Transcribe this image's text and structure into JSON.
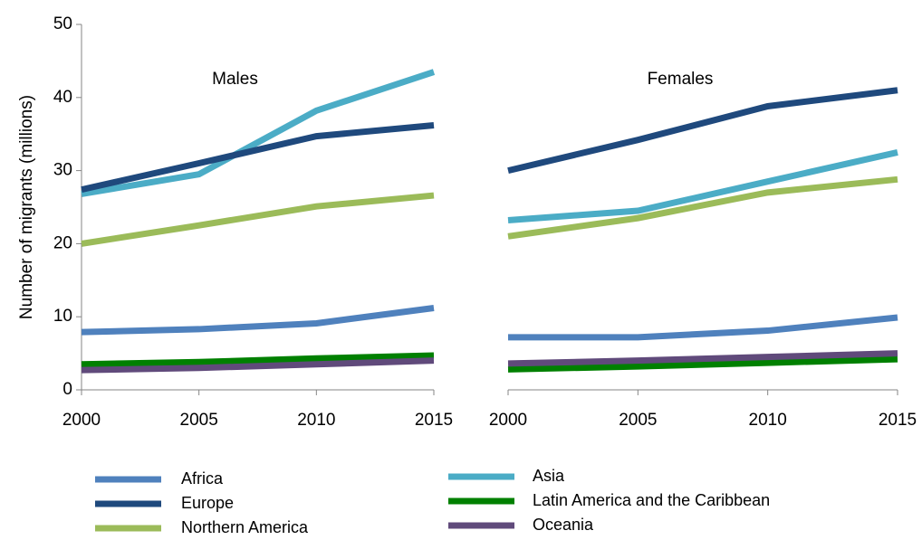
{
  "chart_data": [
    {
      "type": "line",
      "title": "Males",
      "ylabel": "Number of migrants (millions)",
      "x": [
        2000,
        2005,
        2010,
        2015
      ],
      "xlim": [
        2000,
        2015
      ],
      "xticks": [
        2000,
        2005,
        2010,
        2015
      ],
      "ylim": [
        0,
        50
      ],
      "yticks": [
        0,
        10,
        20,
        30,
        40,
        50
      ],
      "series": [
        {
          "name": "Africa",
          "color": "#4f81bd",
          "values": [
            7.9,
            8.3,
            9.1,
            11.2
          ]
        },
        {
          "name": "Asia",
          "color": "#4bacc6",
          "values": [
            26.8,
            29.5,
            38.2,
            43.5
          ]
        },
        {
          "name": "Europe",
          "color": "#1f497d",
          "values": [
            27.4,
            31.0,
            34.7,
            36.2
          ]
        },
        {
          "name": "Latin America and the Caribbean",
          "color": "#008000",
          "values": [
            3.5,
            3.8,
            4.3,
            4.7
          ]
        },
        {
          "name": "Northern America",
          "color": "#9bbb59",
          "values": [
            20.0,
            22.5,
            25.1,
            26.6
          ]
        },
        {
          "name": "Oceania",
          "color": "#604a7b",
          "values": [
            2.7,
            3.0,
            3.5,
            4.0
          ]
        }
      ]
    },
    {
      "type": "line",
      "title": "Females",
      "x": [
        2000,
        2005,
        2010,
        2015
      ],
      "xlim": [
        2000,
        2015
      ],
      "xticks": [
        2000,
        2005,
        2010,
        2015
      ],
      "ylim": [
        0,
        50
      ],
      "series": [
        {
          "name": "Africa",
          "color": "#4f81bd",
          "values": [
            7.2,
            7.2,
            8.1,
            9.9
          ]
        },
        {
          "name": "Asia",
          "color": "#4bacc6",
          "values": [
            23.2,
            24.5,
            28.5,
            32.5
          ]
        },
        {
          "name": "Europe",
          "color": "#1f497d",
          "values": [
            30.0,
            34.2,
            38.8,
            41.0
          ]
        },
        {
          "name": "Latin America and the Caribbean",
          "color": "#008000",
          "values": [
            2.8,
            3.2,
            3.7,
            4.2
          ]
        },
        {
          "name": "Northern America",
          "color": "#9bbb59",
          "values": [
            21.0,
            23.5,
            27.0,
            28.8
          ]
        },
        {
          "name": "Oceania",
          "color": "#604a7b",
          "values": [
            3.6,
            4.0,
            4.5,
            5.0
          ]
        }
      ]
    }
  ]
}
